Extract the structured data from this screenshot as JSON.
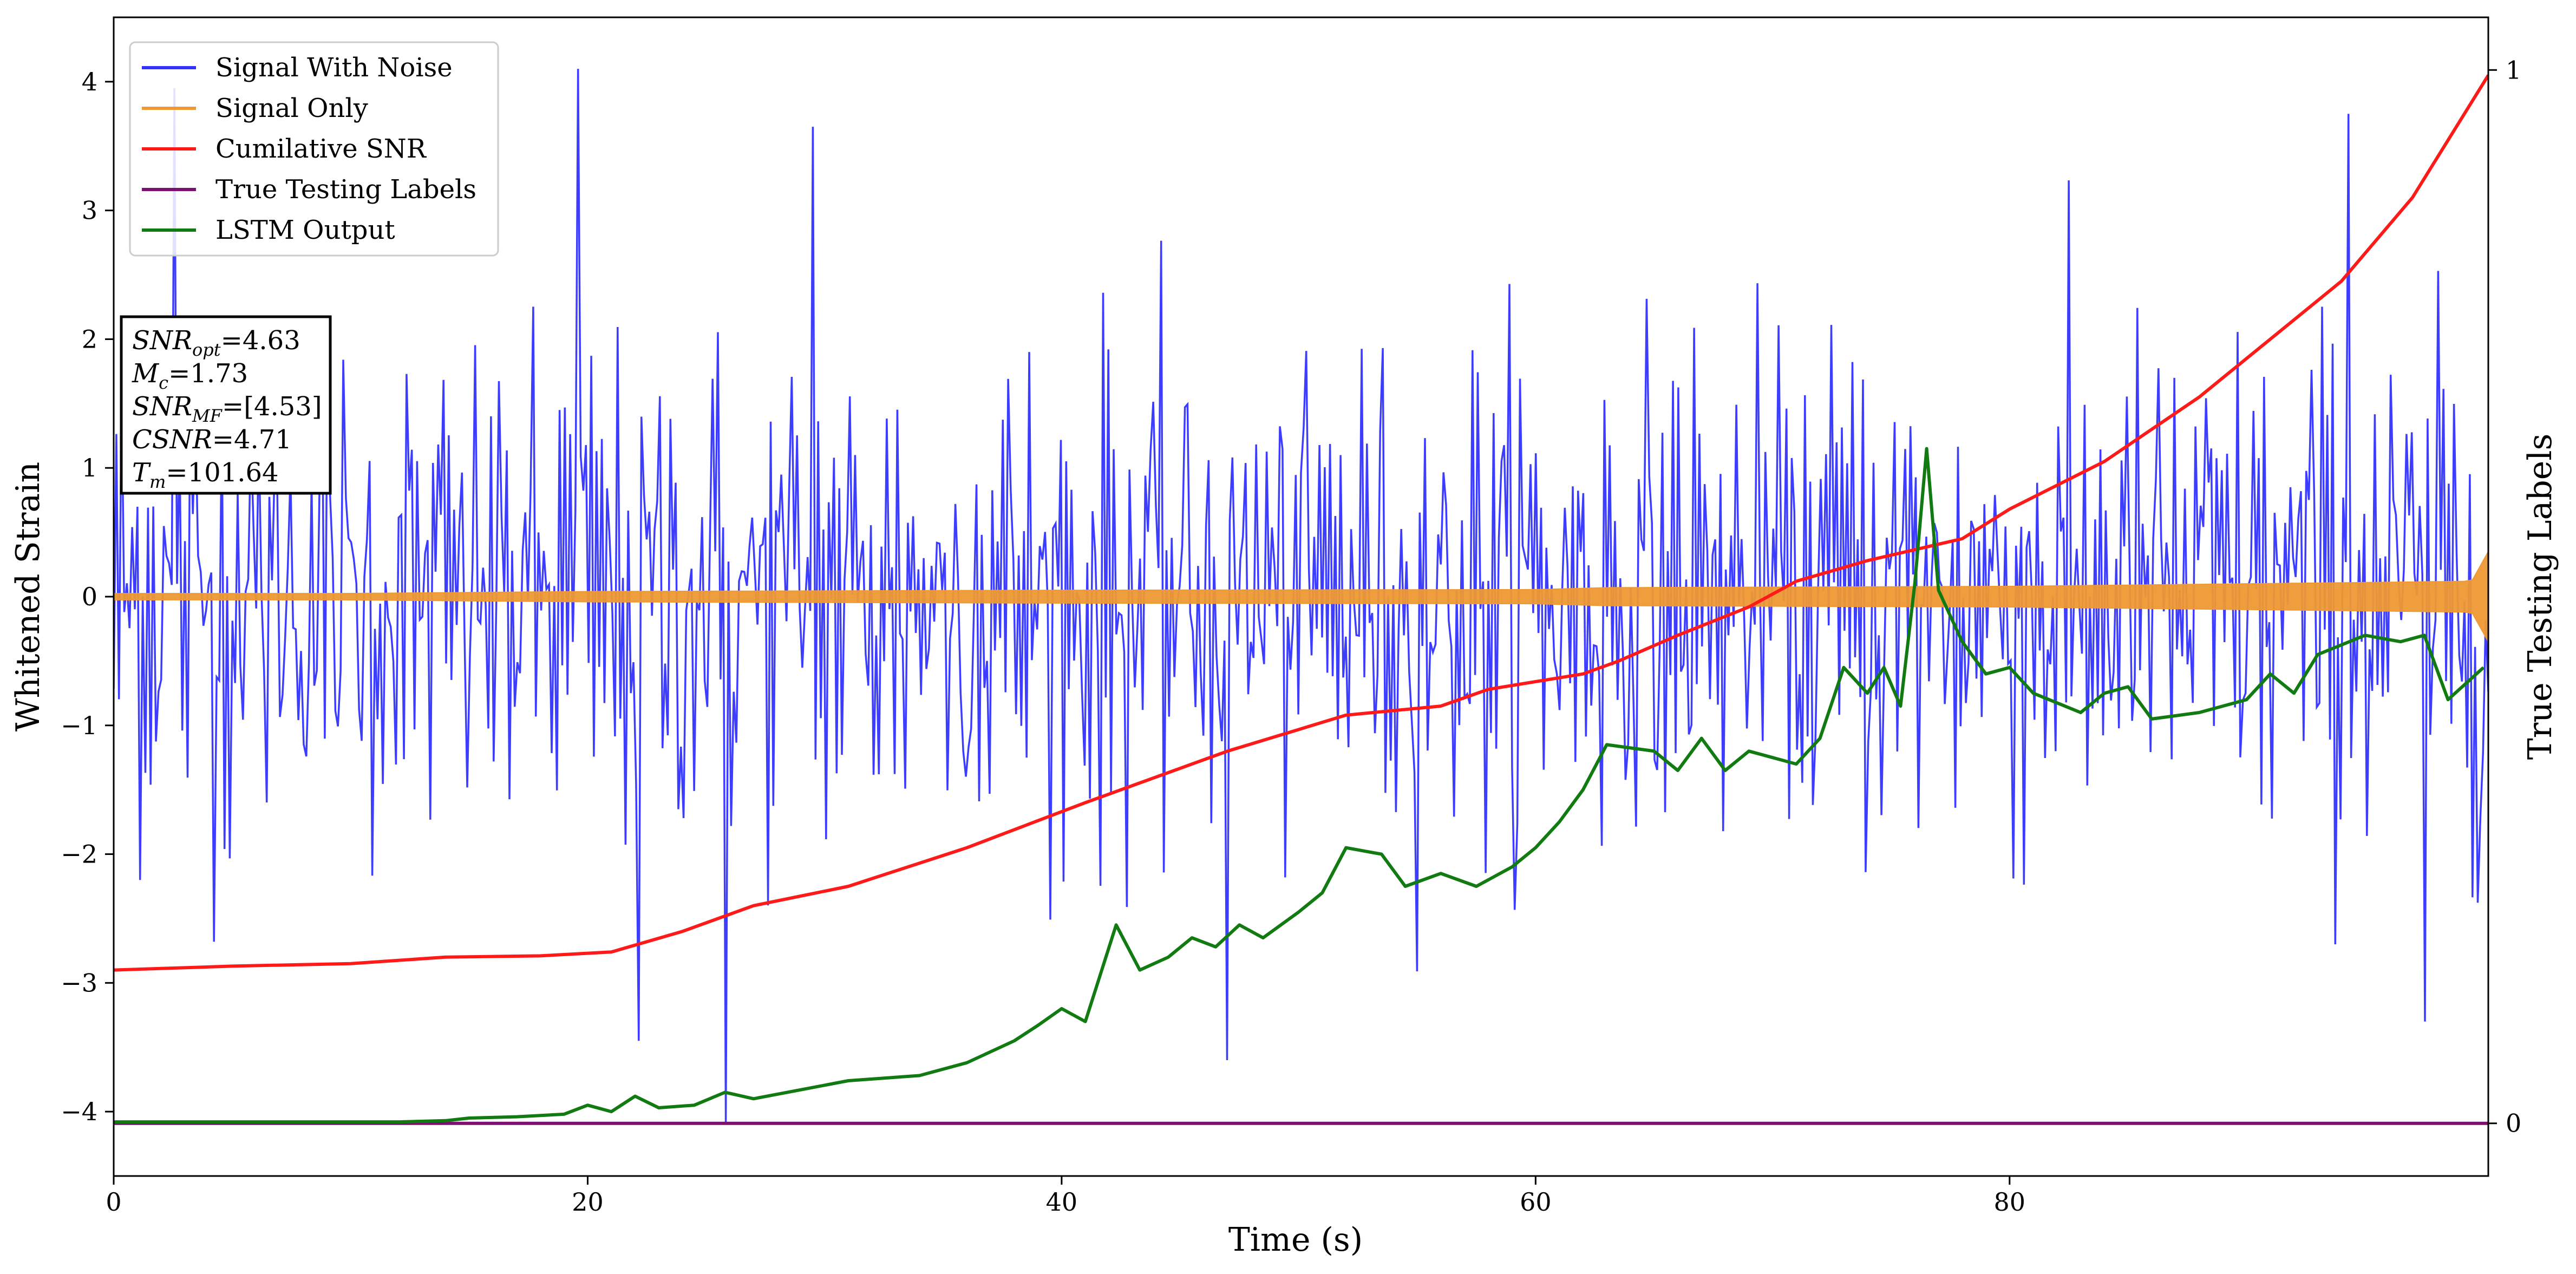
{
  "chart_data": {
    "type": "line",
    "xlabel": "Time (s)",
    "ylabel": "Whitened Strain",
    "y2label": "True Testing Labels",
    "xlim": [
      0,
      100.2
    ],
    "ylim": [
      -4.5,
      4.5
    ],
    "y2lim": [
      -0.05,
      1.05
    ],
    "x_ticks": [
      0,
      20,
      40,
      60,
      80
    ],
    "y_ticks": [
      4,
      3,
      2,
      1,
      0,
      -1,
      -2,
      -3,
      -4
    ],
    "y2_ticks": [
      1,
      0
    ],
    "grid": false,
    "legend_position": "top-left",
    "series": [
      {
        "name": "Signal With Noise",
        "color": "#3333ff",
        "axis": "left",
        "kind": "noise",
        "std": 0.85,
        "points": 900,
        "spikes": [
          [
            19.6,
            4.1
          ],
          [
            25.8,
            -4.08
          ],
          [
            47.0,
            -3.6
          ],
          [
            22.1,
            -3.45
          ],
          [
            97.5,
            -3.3
          ],
          [
            94.3,
            3.75
          ],
          [
            2.6,
            3.95
          ],
          [
            29.5,
            3.65
          ]
        ]
      },
      {
        "name": "Signal Only",
        "color": "#ee9933",
        "axis": "left",
        "kind": "envelope",
        "envelope": [
          [
            0,
            0.025
          ],
          [
            10,
            0.025
          ],
          [
            20,
            0.04
          ],
          [
            40,
            0.05
          ],
          [
            60,
            0.055
          ],
          [
            63,
            0.07
          ],
          [
            80,
            0.08
          ],
          [
            95,
            0.11
          ],
          [
            99.5,
            0.12
          ],
          [
            100.2,
            0.35
          ]
        ]
      },
      {
        "name": "Cumilative SNR",
        "color": "#ff1a1a",
        "axis": "left",
        "kind": "line",
        "points": [
          [
            0,
            -2.9
          ],
          [
            5,
            -2.87
          ],
          [
            10,
            -2.85
          ],
          [
            14,
            -2.8
          ],
          [
            18,
            -2.79
          ],
          [
            21,
            -2.76
          ],
          [
            24,
            -2.6
          ],
          [
            27,
            -2.4
          ],
          [
            31,
            -2.25
          ],
          [
            36,
            -1.95
          ],
          [
            41,
            -1.6
          ],
          [
            47,
            -1.2
          ],
          [
            52,
            -0.92
          ],
          [
            56,
            -0.85
          ],
          [
            58,
            -0.72
          ],
          [
            62,
            -0.6
          ],
          [
            63.5,
            -0.5
          ],
          [
            66,
            -0.3
          ],
          [
            69,
            -0.08
          ],
          [
            71,
            0.12
          ],
          [
            74,
            0.28
          ],
          [
            78,
            0.45
          ],
          [
            80,
            0.68
          ],
          [
            84,
            1.05
          ],
          [
            88,
            1.55
          ],
          [
            91,
            2.0
          ],
          [
            94,
            2.45
          ],
          [
            97,
            3.1
          ],
          [
            100.2,
            4.05
          ]
        ]
      },
      {
        "name": "True Testing Labels",
        "color": "#7b1070",
        "axis": "right",
        "kind": "line",
        "points": [
          [
            0,
            0
          ],
          [
            100.2,
            0
          ]
        ]
      },
      {
        "name": "LSTM Output",
        "color": "#117a11",
        "axis": "left",
        "kind": "line",
        "points": [
          [
            0,
            -4.08
          ],
          [
            12,
            -4.08
          ],
          [
            14,
            -4.07
          ],
          [
            15,
            -4.05
          ],
          [
            17,
            -4.04
          ],
          [
            19,
            -4.02
          ],
          [
            20,
            -3.95
          ],
          [
            21,
            -4.0
          ],
          [
            22,
            -3.88
          ],
          [
            23,
            -3.97
          ],
          [
            24.5,
            -3.95
          ],
          [
            25.8,
            -3.85
          ],
          [
            27,
            -3.9
          ],
          [
            29,
            -3.83
          ],
          [
            31,
            -3.76
          ],
          [
            34,
            -3.72
          ],
          [
            36,
            -3.62
          ],
          [
            38,
            -3.45
          ],
          [
            39,
            -3.33
          ],
          [
            40,
            -3.2
          ],
          [
            41,
            -3.3
          ],
          [
            42.3,
            -2.55
          ],
          [
            43.3,
            -2.9
          ],
          [
            44.5,
            -2.8
          ],
          [
            45.5,
            -2.65
          ],
          [
            46.5,
            -2.72
          ],
          [
            47.5,
            -2.55
          ],
          [
            48.5,
            -2.65
          ],
          [
            50,
            -2.45
          ],
          [
            51,
            -2.3
          ],
          [
            52,
            -1.95
          ],
          [
            53.5,
            -2.0
          ],
          [
            54.5,
            -2.25
          ],
          [
            56,
            -2.15
          ],
          [
            57.5,
            -2.25
          ],
          [
            59,
            -2.1
          ],
          [
            60,
            -1.95
          ],
          [
            61,
            -1.75
          ],
          [
            62,
            -1.5
          ],
          [
            63,
            -1.15
          ],
          [
            65,
            -1.2
          ],
          [
            66,
            -1.35
          ],
          [
            67,
            -1.1
          ],
          [
            68,
            -1.35
          ],
          [
            69,
            -1.2
          ],
          [
            70,
            -1.25
          ],
          [
            71,
            -1.3
          ],
          [
            72,
            -1.1
          ],
          [
            73,
            -0.55
          ],
          [
            74,
            -0.75
          ],
          [
            74.7,
            -0.55
          ],
          [
            75.4,
            -0.85
          ],
          [
            76.0,
            0.1
          ],
          [
            76.5,
            1.15
          ],
          [
            77.0,
            0.05
          ],
          [
            78.0,
            -0.35
          ],
          [
            79.0,
            -0.6
          ],
          [
            80,
            -0.55
          ],
          [
            81,
            -0.75
          ],
          [
            83,
            -0.9
          ],
          [
            84,
            -0.75
          ],
          [
            85,
            -0.7
          ],
          [
            86,
            -0.95
          ],
          [
            88,
            -0.9
          ],
          [
            89,
            -0.85
          ],
          [
            90,
            -0.8
          ],
          [
            91,
            -0.6
          ],
          [
            92,
            -0.75
          ],
          [
            93,
            -0.45
          ],
          [
            95,
            -0.3
          ],
          [
            96.5,
            -0.35
          ],
          [
            97.5,
            -0.3
          ],
          [
            98.5,
            -0.8
          ],
          [
            100,
            -0.55
          ]
        ]
      }
    ],
    "annotation": [
      {
        "base": "SNR",
        "sub": "opt",
        "value": "=4.63"
      },
      {
        "base": "M",
        "sub": "c",
        "value": "=1.73"
      },
      {
        "base": "SNR",
        "sub": "MF",
        "value": "=[4.53]"
      },
      {
        "base": "CSNR",
        "sub": "",
        "value": "=4.71"
      },
      {
        "base": "T",
        "sub": "m",
        "value": "=101.64"
      }
    ]
  }
}
